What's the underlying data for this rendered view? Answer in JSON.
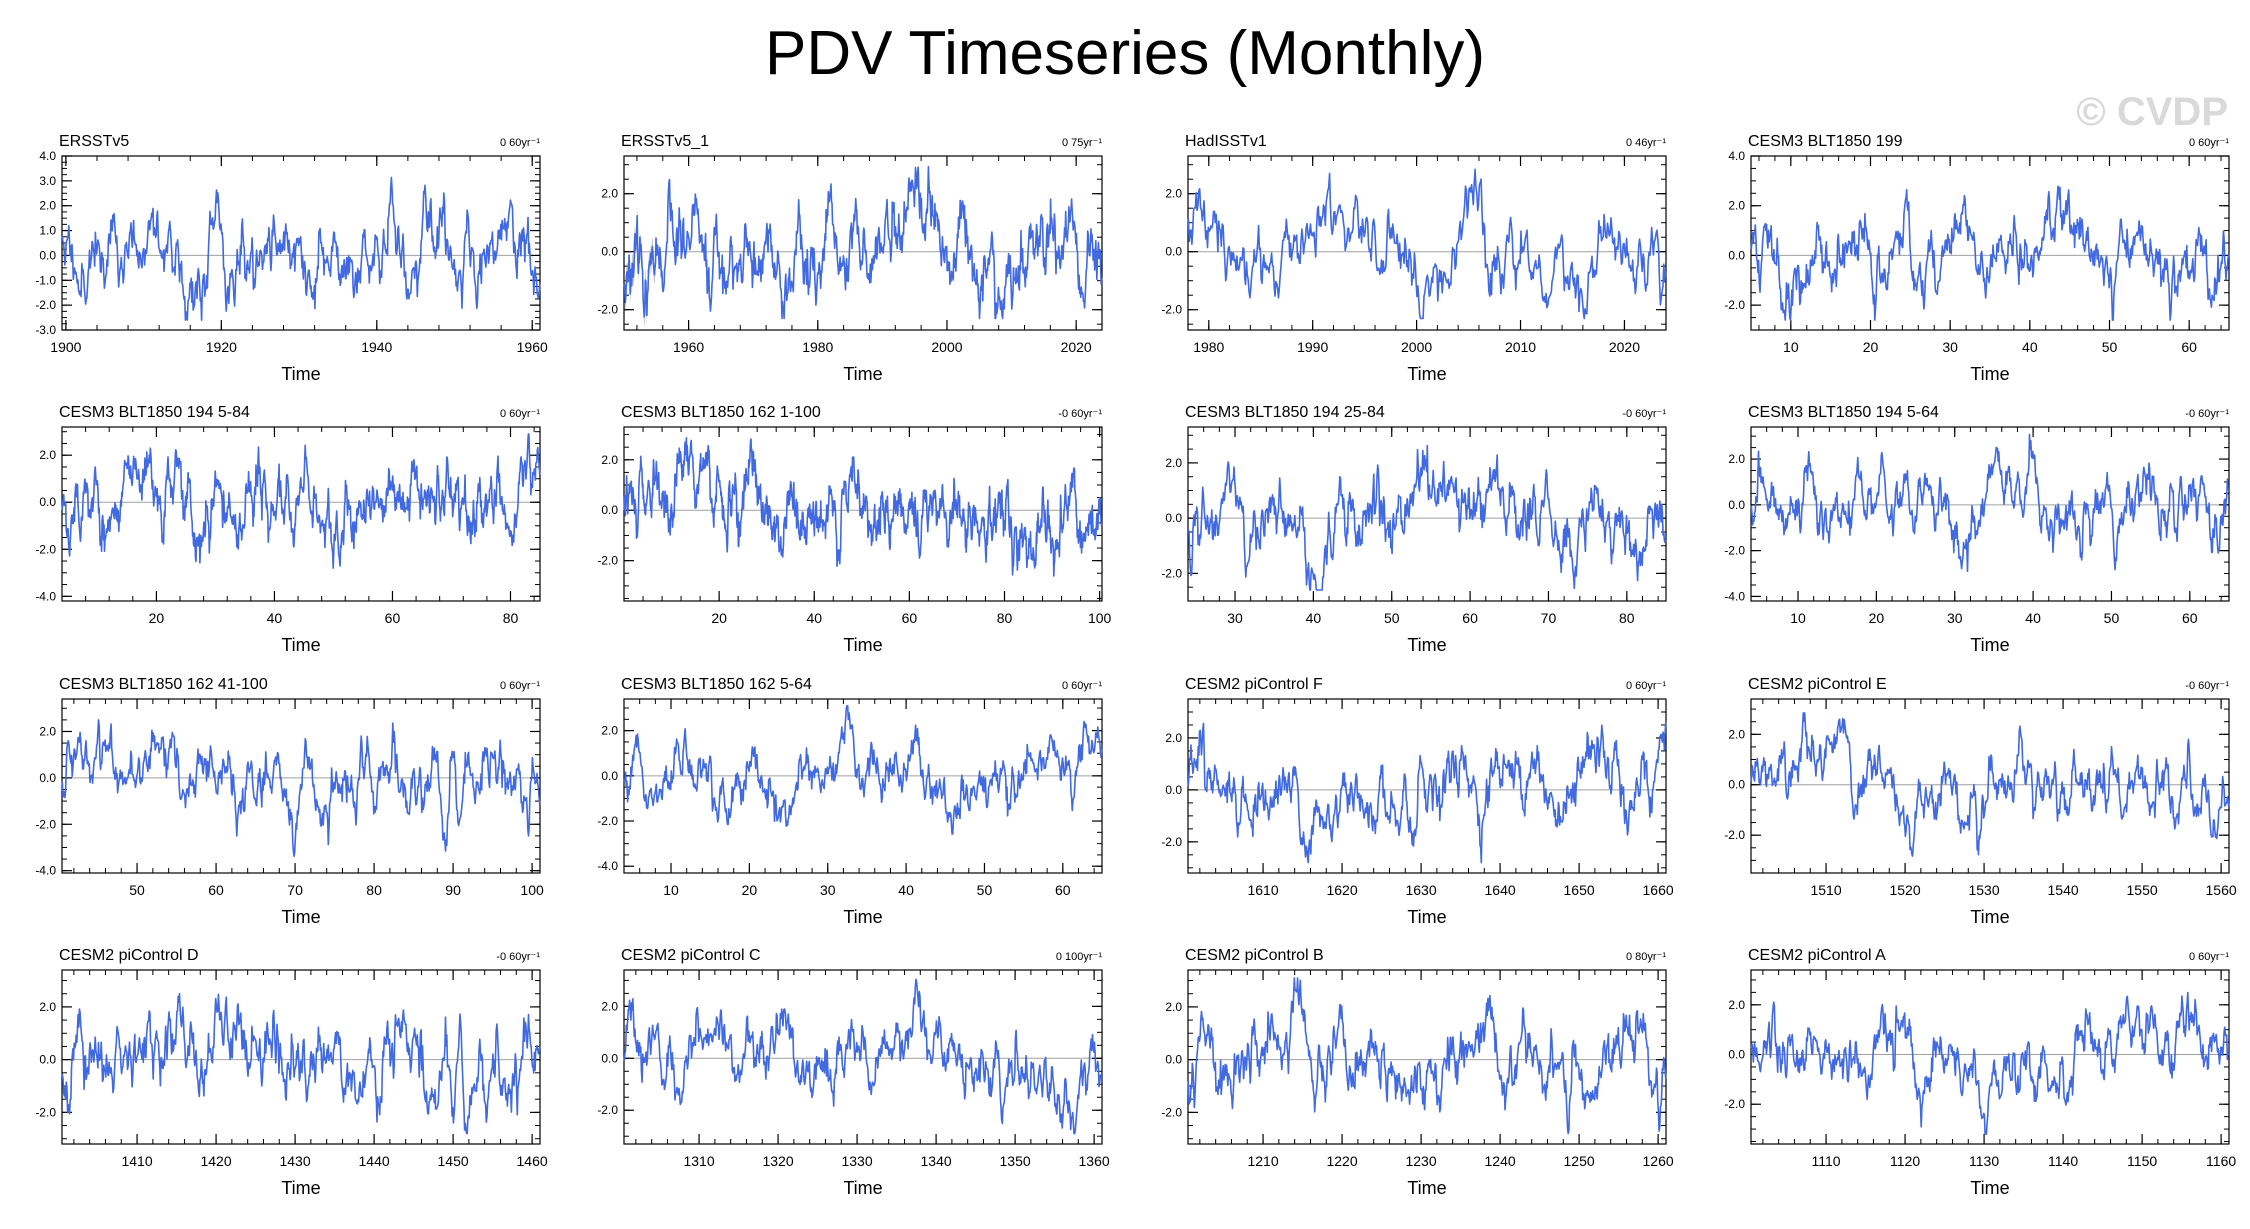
{
  "title": "PDV Timeseries (Monthly)",
  "watermark": "© CVDP",
  "colors": {
    "series": "#4169E1",
    "obs_spread": "#909090",
    "zero_line": "#a0a0a0",
    "axis": "#000000"
  },
  "chart_data": [
    {
      "type": "line",
      "title": "ERSSTv5",
      "trend": "0 60yr⁻¹",
      "xlabel": "Time",
      "xlim": [
        1899.5,
        1961
      ],
      "xticks": [
        1900,
        1920,
        1940,
        1960
      ],
      "ylim": [
        -3,
        4
      ],
      "yticks": [
        -3,
        -2,
        -1,
        0,
        1,
        2,
        3,
        4
      ],
      "ytick_labels": [
        "-3.0",
        "-2.0",
        "-1.0",
        "0.0",
        "1.0",
        "2.0",
        "3.0",
        "4.0"
      ],
      "seed": 11,
      "ar": 0.9,
      "noise": 0.45,
      "series": [
        {
          "name": "ERSSTv5",
          "values": []
        }
      ]
    },
    {
      "type": "line",
      "title": "ERSSTv5_1",
      "trend": "0 75yr⁻¹",
      "xlabel": "Time",
      "xlim": [
        1950,
        2024
      ],
      "xticks": [
        1960,
        1980,
        2000,
        2020
      ],
      "ylim": [
        -2.7,
        3.3
      ],
      "yticks": [
        -2,
        0,
        2
      ],
      "ytick_labels": [
        "-2.0",
        "0.0",
        "2.0"
      ],
      "seed": 23,
      "ar": 0.9,
      "noise": 0.5,
      "spread": true,
      "series": [
        {
          "name": "ERSSTv5_1",
          "values": []
        }
      ]
    },
    {
      "type": "line",
      "title": "HadISSTv1",
      "trend": "0 46yr⁻¹",
      "xlabel": "Time",
      "xlim": [
        1978,
        2024
      ],
      "xticks": [
        1980,
        1990,
        2000,
        2010,
        2020
      ],
      "ylim": [
        -2.7,
        3.3
      ],
      "yticks": [
        -2,
        0,
        2
      ],
      "ytick_labels": [
        "-2.0",
        "0.0",
        "2.0"
      ],
      "seed": 37,
      "ar": 0.9,
      "noise": 0.5,
      "series": [
        {
          "name": "HadISSTv1",
          "values": []
        }
      ]
    },
    {
      "type": "line",
      "title": "CESM3 BLT1850 199",
      "trend": "0 60yr⁻¹",
      "xlabel": "Time",
      "xlim": [
        5,
        65
      ],
      "xticks": [
        10,
        20,
        30,
        40,
        50,
        60
      ],
      "ylim": [
        -3,
        4
      ],
      "yticks": [
        -2,
        0,
        2,
        4
      ],
      "ytick_labels": [
        "-2.0",
        "0.0",
        "2.0",
        "4.0"
      ],
      "seed": 41,
      "ar": 0.9,
      "noise": 0.45,
      "series": [
        {
          "name": "CESM3 BLT1850 199",
          "values": []
        }
      ]
    },
    {
      "type": "line",
      "title": "CESM3 BLT1850 194 5-84",
      "trend": "0 60yr⁻¹",
      "xlabel": "Time",
      "xlim": [
        4,
        85
      ],
      "xticks": [
        20,
        40,
        60,
        80
      ],
      "ylim": [
        -4.2,
        3.2
      ],
      "yticks": [
        -4,
        -2,
        0,
        2
      ],
      "ytick_labels": [
        "-4.0",
        "-2.0",
        "0.0",
        "2.0"
      ],
      "seed": 53,
      "ar": 0.9,
      "noise": 0.45,
      "series": [
        {
          "name": "CESM3 BLT1850 194 5-84",
          "values": []
        }
      ]
    },
    {
      "type": "line",
      "title": "CESM3 BLT1850 162 1-100",
      "trend": "-0 60yr⁻¹",
      "xlabel": "Time",
      "xlim": [
        0,
        100.5
      ],
      "xticks": [
        20,
        40,
        60,
        80,
        100
      ],
      "ylim": [
        -3.6,
        3.3
      ],
      "yticks": [
        -2,
        0,
        2
      ],
      "ytick_labels": [
        "-2.0",
        "0.0",
        "2.0"
      ],
      "seed": 67,
      "ar": 0.9,
      "noise": 0.45,
      "series": [
        {
          "name": "CESM3 BLT1850 162 1-100",
          "values": []
        }
      ]
    },
    {
      "type": "line",
      "title": "CESM3 BLT1850 194 25-84",
      "trend": "-0 60yr⁻¹",
      "xlabel": "Time",
      "xlim": [
        24,
        85
      ],
      "xticks": [
        30,
        40,
        50,
        60,
        70,
        80
      ],
      "ylim": [
        -3,
        3.3
      ],
      "yticks": [
        -2,
        0,
        2
      ],
      "ytick_labels": [
        "-2.0",
        "0.0",
        "2.0"
      ],
      "seed": 71,
      "ar": 0.9,
      "noise": 0.45,
      "series": [
        {
          "name": "CESM3 BLT1850 194 25-84",
          "values": []
        }
      ]
    },
    {
      "type": "line",
      "title": "CESM3 BLT1850 194 5-64",
      "trend": "-0 60yr⁻¹",
      "xlabel": "Time",
      "xlim": [
        4,
        65
      ],
      "xticks": [
        10,
        20,
        30,
        40,
        50,
        60
      ],
      "ylim": [
        -4.2,
        3.4
      ],
      "yticks": [
        -4,
        -2,
        0,
        2
      ],
      "ytick_labels": [
        "-4.0",
        "-2.0",
        "0.0",
        "2.0"
      ],
      "seed": 83,
      "ar": 0.9,
      "noise": 0.45,
      "series": [
        {
          "name": "CESM3 BLT1850 194 5-64",
          "values": []
        }
      ]
    },
    {
      "type": "line",
      "title": "CESM3 BLT1850 162 41-100",
      "trend": "0 60yr⁻¹",
      "xlabel": "Time",
      "xlim": [
        40.5,
        101
      ],
      "xticks": [
        50,
        60,
        70,
        80,
        90,
        100
      ],
      "ylim": [
        -4.1,
        3.4
      ],
      "yticks": [
        -4,
        -2,
        0,
        2
      ],
      "ytick_labels": [
        "-4.0",
        "-2.0",
        "0.0",
        "2.0"
      ],
      "seed": 97,
      "ar": 0.9,
      "noise": 0.45,
      "series": [
        {
          "name": "CESM3 BLT1850 162 41-100",
          "values": []
        }
      ]
    },
    {
      "type": "line",
      "title": "CESM3 BLT1850 162 5-64",
      "trend": "0 60yr⁻¹",
      "xlabel": "Time",
      "xlim": [
        4,
        65
      ],
      "xticks": [
        10,
        20,
        30,
        40,
        50,
        60
      ],
      "ylim": [
        -4.3,
        3.4
      ],
      "yticks": [
        -4,
        -2,
        0,
        2
      ],
      "ytick_labels": [
        "-4.0",
        "-2.0",
        "0.0",
        "2.0"
      ],
      "seed": 101,
      "ar": 0.9,
      "noise": 0.45,
      "series": [
        {
          "name": "CESM3 BLT1850 162 5-64",
          "values": []
        }
      ]
    },
    {
      "type": "line",
      "title": "CESM2 piControl F",
      "trend": "0 60yr⁻¹",
      "xlabel": "Time",
      "xlim": [
        1600.5,
        1661
      ],
      "xticks": [
        1610,
        1620,
        1630,
        1640,
        1650,
        1660
      ],
      "ylim": [
        -3.2,
        3.5
      ],
      "yticks": [
        -2,
        0,
        2
      ],
      "ytick_labels": [
        "-2.0",
        "0.0",
        "2.0"
      ],
      "seed": 113,
      "ar": 0.9,
      "noise": 0.45,
      "series": [
        {
          "name": "CESM2 piControl F",
          "values": []
        }
      ]
    },
    {
      "type": "line",
      "title": "CESM2 piControl E",
      "trend": "-0 60yr⁻¹",
      "xlabel": "Time",
      "xlim": [
        1500.5,
        1561
      ],
      "xticks": [
        1510,
        1520,
        1530,
        1540,
        1550,
        1560
      ],
      "ylim": [
        -3.5,
        3.4
      ],
      "yticks": [
        -2,
        0,
        2
      ],
      "ytick_labels": [
        "-2.0",
        "0.0",
        "2.0"
      ],
      "seed": 127,
      "ar": 0.9,
      "noise": 0.45,
      "series": [
        {
          "name": "CESM2 piControl E",
          "values": []
        }
      ]
    },
    {
      "type": "line",
      "title": "CESM2 piControl D",
      "trend": "-0 60yr⁻¹",
      "xlabel": "Time",
      "xlim": [
        1400.5,
        1461
      ],
      "xticks": [
        1410,
        1420,
        1430,
        1440,
        1450,
        1460
      ],
      "ylim": [
        -3.2,
        3.4
      ],
      "yticks": [
        -2,
        0,
        2
      ],
      "ytick_labels": [
        "-2.0",
        "0.0",
        "2.0"
      ],
      "seed": 131,
      "ar": 0.9,
      "noise": 0.45,
      "series": [
        {
          "name": "CESM2 piControl D",
          "values": []
        }
      ]
    },
    {
      "type": "line",
      "title": "CESM2 piControl C",
      "trend": "0 100yr⁻¹",
      "xlabel": "Time",
      "xlim": [
        1300.5,
        1361
      ],
      "xticks": [
        1310,
        1320,
        1330,
        1340,
        1350,
        1360
      ],
      "ylim": [
        -3.3,
        3.4
      ],
      "yticks": [
        -2,
        0,
        2
      ],
      "ytick_labels": [
        "-2.0",
        "0.0",
        "2.0"
      ],
      "seed": 149,
      "ar": 0.9,
      "noise": 0.45,
      "series": [
        {
          "name": "CESM2 piControl C",
          "values": []
        }
      ]
    },
    {
      "type": "line",
      "title": "CESM2 piControl B",
      "trend": "0 80yr⁻¹",
      "xlabel": "Time",
      "xlim": [
        1200.5,
        1261
      ],
      "xticks": [
        1210,
        1220,
        1230,
        1240,
        1250,
        1260
      ],
      "ylim": [
        -3.2,
        3.4
      ],
      "yticks": [
        -2,
        0,
        2
      ],
      "ytick_labels": [
        "-2.0",
        "0.0",
        "2.0"
      ],
      "seed": 157,
      "ar": 0.9,
      "noise": 0.45,
      "series": [
        {
          "name": "CESM2 piControl B",
          "values": []
        }
      ]
    },
    {
      "type": "line",
      "title": "CESM2 piControl A",
      "trend": "0 60yr⁻¹",
      "xlabel": "Time",
      "xlim": [
        1100.5,
        1161
      ],
      "xticks": [
        1110,
        1120,
        1130,
        1140,
        1150,
        1160
      ],
      "ylim": [
        -3.6,
        3.4
      ],
      "yticks": [
        -2,
        0,
        2
      ],
      "ytick_labels": [
        "-2.0",
        "0.0",
        "2.0"
      ],
      "seed": 163,
      "ar": 0.9,
      "noise": 0.45,
      "series": [
        {
          "name": "CESM2 piControl A",
          "values": []
        }
      ]
    }
  ]
}
